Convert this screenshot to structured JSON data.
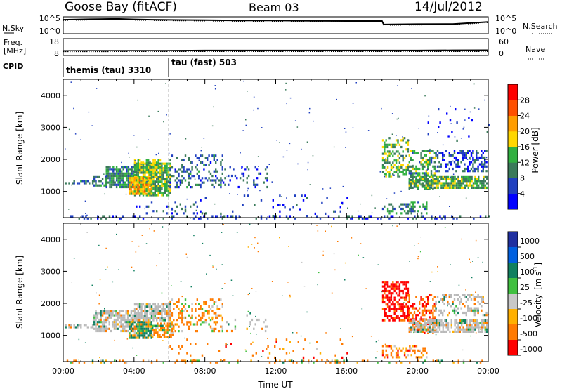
{
  "header": {
    "station": "Goose Bay (fitACF)",
    "beam": "Beam 03",
    "date": "14/Jul/2012"
  },
  "noise_panel": {
    "left_label": "N.Sky",
    "left_ticks": [
      "10^5",
      "10^0"
    ],
    "right_label": "N.Search",
    "right_ticks": [
      "10^5",
      "10^0"
    ]
  },
  "freq_panel": {
    "left_label_line1": "Freq.",
    "left_label_line2": "[MHz]",
    "left_ticks": [
      "18",
      "8"
    ],
    "right_label": "Nave",
    "right_ticks": [
      "60",
      "0"
    ]
  },
  "cpid": {
    "label": "CPID",
    "modes": [
      {
        "name": "themis (tau) 3310",
        "start_hour": 0
      },
      {
        "name": "tau (fast) 503",
        "start_hour": 6
      }
    ]
  },
  "power_colorbar": {
    "label": "Power [dB]",
    "ticks": [
      "28",
      "24",
      "20",
      "16",
      "12",
      "8",
      "4"
    ],
    "colors": [
      "#0000ff",
      "#2040c0",
      "#3a7a5a",
      "#30b040",
      "#ffd700",
      "#ff9d00",
      "#ff5000",
      "#ff0000"
    ]
  },
  "velocity_colorbar": {
    "label": "Velocity",
    "unit_base": "[m s",
    "unit_sup": "-1",
    "unit_close": "]",
    "ticks": [
      "1000",
      "500",
      "100",
      "25",
      "-25",
      "-100",
      "-500",
      "-1000"
    ],
    "colors": [
      "#2030a0",
      "#0060e0",
      "#108060",
      "#40c040",
      "#c8c8c8",
      "#ffb000",
      "#ff7a00",
      "#ff0000"
    ],
    "ground_scatter": "#b9b9b9"
  },
  "chart_data": [
    {
      "type": "line",
      "panel": "noise",
      "y_scale": "log",
      "x": [
        0,
        1,
        2,
        3,
        4,
        5,
        6,
        8,
        10,
        12,
        14,
        16,
        18,
        18.1,
        20,
        22,
        24
      ],
      "series": [
        {
          "values": [
            30000,
            40000,
            50000,
            60000,
            40000,
            30000,
            25000,
            20000,
            15000,
            15000,
            12000,
            10000,
            10000,
            600,
            800,
            900,
            5000
          ]
        }
      ]
    },
    {
      "type": "line",
      "panel": "frequency",
      "x": [
        0,
        6,
        8,
        12,
        16,
        20,
        22,
        24
      ],
      "series": [
        {
          "values": [
            10.4,
            10.5,
            10.7,
            10.7,
            10.7,
            10.7,
            10.8,
            10.9
          ]
        },
        {
          "values": [
            9.8,
            9.9,
            9.9,
            9.9,
            9.9,
            9.9,
            9.9,
            9.9
          ]
        }
      ]
    },
    {
      "type": "heatmap",
      "panel": "power",
      "title": "",
      "ylabel": "Slant Range [km]",
      "xlabel": "",
      "xlim": [
        0,
        24
      ],
      "ylim": [
        180,
        4500
      ],
      "yticks": [
        "1000",
        "2000",
        "3000",
        "4000"
      ],
      "xticks": [
        "00:00",
        "04:00",
        "08:00",
        "12:00",
        "16:00",
        "20:00",
        "00:00"
      ],
      "regions": [
        {
          "t0": 0.1,
          "t1": 1.7,
          "r0": 1220,
          "r1": 1360,
          "density": 0.55,
          "v": 8
        },
        {
          "t0": 1.7,
          "t1": 2.4,
          "r0": 1150,
          "r1": 1500,
          "density": 0.55,
          "v": 9
        },
        {
          "t0": 2.4,
          "t1": 4.0,
          "r0": 1100,
          "r1": 1800,
          "density": 0.8,
          "v": 11
        },
        {
          "t0": 4.0,
          "t1": 6.0,
          "r0": 850,
          "r1": 1900,
          "density": 0.85,
          "v": 14
        },
        {
          "t0": 3.7,
          "t1": 5.0,
          "r0": 950,
          "r1": 1450,
          "density": 0.9,
          "v": 20
        },
        {
          "t0": 4.0,
          "t1": 5.5,
          "r0": 1600,
          "r1": 2000,
          "density": 0.7,
          "v": 15
        },
        {
          "t0": 6.0,
          "t1": 9.0,
          "r0": 1100,
          "r1": 2150,
          "density": 0.28,
          "v": 8
        },
        {
          "t0": 9.0,
          "t1": 11.5,
          "r0": 1100,
          "r1": 1800,
          "density": 0.12,
          "v": 6
        },
        {
          "t0": 4.0,
          "t1": 8.0,
          "r0": 300,
          "r1": 700,
          "density": 0.15,
          "v": 6
        },
        {
          "t0": 0.0,
          "t1": 24.0,
          "r0": 180,
          "r1": 260,
          "density": 0.2,
          "v": 6
        },
        {
          "t0": 6.0,
          "t1": 16.0,
          "r0": 260,
          "r1": 900,
          "density": 0.04,
          "v": 6
        },
        {
          "t0": 18.0,
          "t1": 19.5,
          "r0": 1500,
          "r1": 2700,
          "density": 0.45,
          "v": 14
        },
        {
          "t0": 19.5,
          "t1": 21.0,
          "r0": 1100,
          "r1": 2300,
          "density": 0.5,
          "v": 12
        },
        {
          "t0": 19.5,
          "t1": 23.9,
          "r0": 1100,
          "r1": 1500,
          "density": 0.75,
          "v": 13
        },
        {
          "t0": 21.0,
          "t1": 23.9,
          "r0": 1600,
          "r1": 2300,
          "density": 0.4,
          "v": 6
        },
        {
          "t0": 18.0,
          "t1": 20.5,
          "r0": 300,
          "r1": 700,
          "density": 0.35,
          "v": 11
        },
        {
          "t0": 20.0,
          "t1": 24.0,
          "r0": 2600,
          "r1": 3600,
          "density": 0.03,
          "v": 6
        }
      ]
    },
    {
      "type": "heatmap",
      "panel": "velocity",
      "title": "",
      "ylabel": "Slant Range [km]",
      "xlabel": "Time UT",
      "xlim": [
        0,
        24
      ],
      "ylim": [
        180,
        4500
      ],
      "yticks": [
        "1000",
        "2000",
        "3000",
        "4000"
      ],
      "xticks": [
        "00:00",
        "04:00",
        "08:00",
        "12:00",
        "16:00",
        "20:00",
        "00:00"
      ],
      "regions": [
        {
          "t0": 0.1,
          "t1": 1.7,
          "r0": 1220,
          "r1": 1360,
          "density": 0.6,
          "v": 0
        },
        {
          "t0": 1.7,
          "t1": 4.0,
          "r0": 1100,
          "r1": 1800,
          "density": 0.75,
          "v": 0
        },
        {
          "t0": 3.7,
          "t1": 5.0,
          "r0": 950,
          "r1": 1450,
          "density": 0.9,
          "v": 150
        },
        {
          "t0": 4.0,
          "t1": 6.0,
          "r0": 1500,
          "r1": 2000,
          "density": 0.8,
          "v": 0
        },
        {
          "t0": 5.0,
          "t1": 6.2,
          "r0": 950,
          "r1": 1400,
          "density": 0.7,
          "v": -150
        },
        {
          "t0": 6.0,
          "t1": 9.0,
          "r0": 1100,
          "r1": 2150,
          "density": 0.3,
          "v": -200
        },
        {
          "t0": 9.0,
          "t1": 11.5,
          "r0": 1100,
          "r1": 1800,
          "density": 0.12,
          "v": 50
        },
        {
          "t0": 0.0,
          "t1": 24.0,
          "r0": 180,
          "r1": 260,
          "density": 0.2,
          "v": -100
        },
        {
          "t0": 6.0,
          "t1": 16.0,
          "r0": 260,
          "r1": 900,
          "density": 0.04,
          "v": -300
        },
        {
          "t0": 18.0,
          "t1": 19.5,
          "r0": 1500,
          "r1": 2700,
          "density": 0.55,
          "v": -700
        },
        {
          "t0": 19.5,
          "t1": 21.0,
          "r0": 1100,
          "r1": 2300,
          "density": 0.45,
          "v": -400
        },
        {
          "t0": 19.5,
          "t1": 23.9,
          "r0": 1100,
          "r1": 1500,
          "density": 0.75,
          "v": 0
        },
        {
          "t0": 21.0,
          "t1": 23.9,
          "r0": 1600,
          "r1": 2300,
          "density": 0.35,
          "v": 0
        },
        {
          "t0": 18.0,
          "t1": 20.5,
          "r0": 300,
          "r1": 700,
          "density": 0.35,
          "v": -300
        }
      ]
    }
  ]
}
